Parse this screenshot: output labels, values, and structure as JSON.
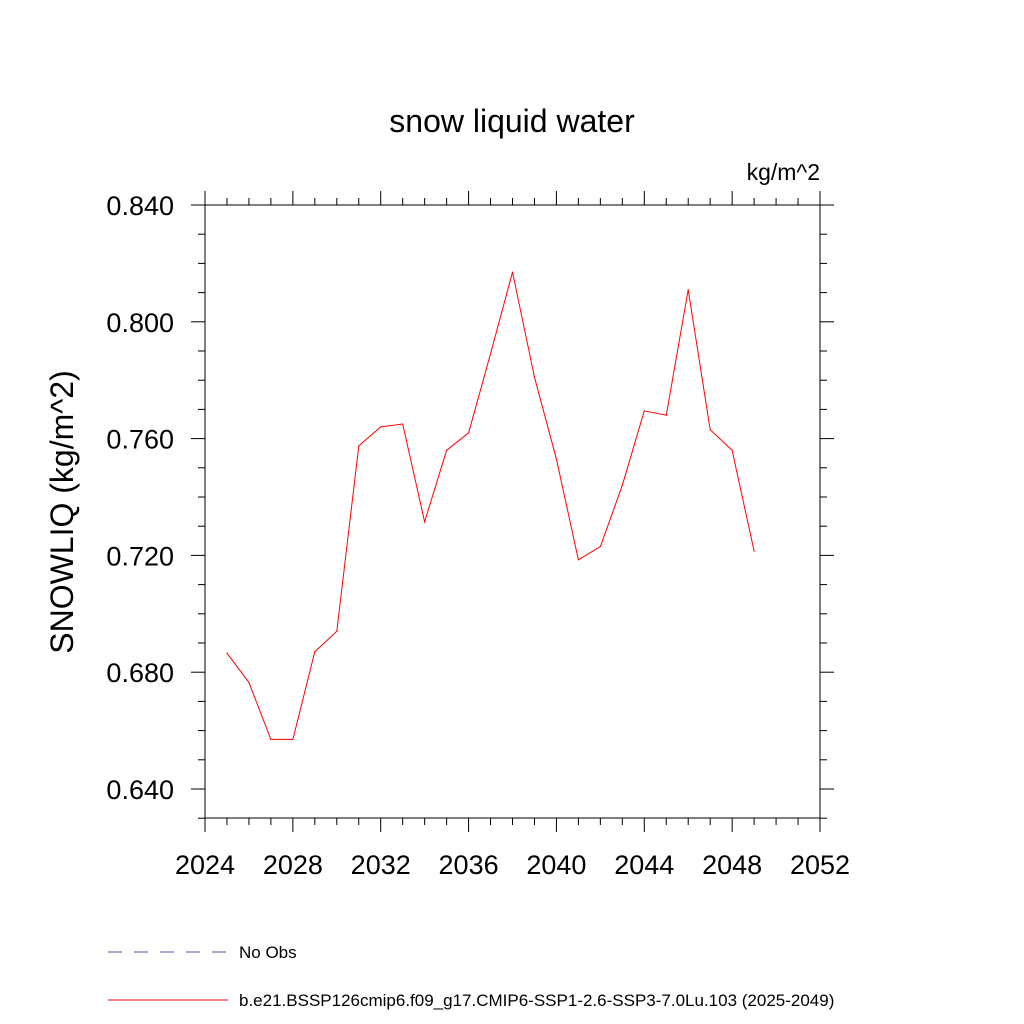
{
  "chart_data": {
    "type": "line",
    "title": "snow liquid water",
    "units": "kg/m^2",
    "ylabel": "SNOWLIQ  (kg/m^2)",
    "xlabel": "",
    "xlim": [
      2024,
      2052
    ],
    "ylim": [
      0.63,
      0.845
    ],
    "x_ticks": [
      "2024",
      "2028",
      "2032",
      "2036",
      "2040",
      "2044",
      "2048",
      "2052"
    ],
    "y_ticks": [
      "0.640",
      "0.680",
      "0.720",
      "0.760",
      "0.800",
      "0.840"
    ],
    "grid": false,
    "legend_position": "bottom",
    "series": [
      {
        "name": "No Obs",
        "color": "#5a4fa8",
        "dash": "dashed",
        "x": [],
        "values": []
      },
      {
        "name": "b.e21.BSSP126cmip6.f09_g17.CMIP6-SSP1-2.6-SSP3-7.0Lu.103 (2025-2049)",
        "color": "#ff0000",
        "dash": "solid",
        "x": [
          2025,
          2026,
          2027,
          2028,
          2029,
          2030,
          2031,
          2032,
          2033,
          2034,
          2035,
          2036,
          2037,
          2038,
          2039,
          2040,
          2041,
          2042,
          2043,
          2044,
          2045,
          2046,
          2047,
          2048,
          2049
        ],
        "values": [
          0.6865,
          0.6765,
          0.657,
          0.657,
          0.687,
          0.694,
          0.7575,
          0.764,
          0.765,
          0.7315,
          0.756,
          0.762,
          0.789,
          0.817,
          0.781,
          0.753,
          0.7185,
          0.723,
          0.744,
          0.7695,
          0.768,
          0.811,
          0.763,
          0.756,
          0.7215
        ]
      }
    ]
  }
}
